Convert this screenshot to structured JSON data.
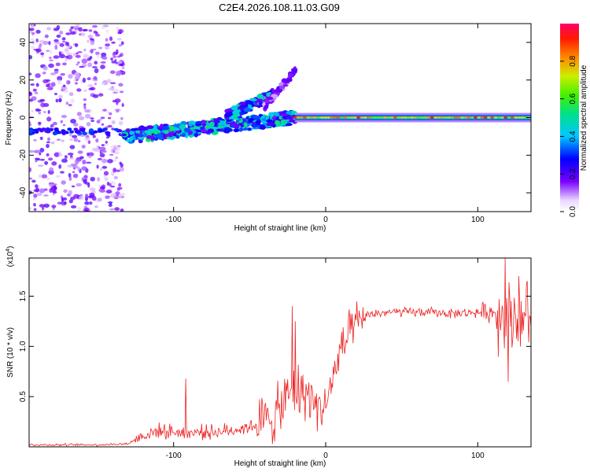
{
  "title": "C2E4.2026.108.11.03.G09",
  "chart_data": [
    {
      "type": "heatmap",
      "title": "C2E4.2026.108.11.03.G09",
      "xlabel": "Height of straight line (km)",
      "ylabel": "Frequency (Hz)",
      "xlim": [
        -195,
        135
      ],
      "ylim": [
        -50,
        50
      ],
      "xticks": [
        -100,
        0,
        100
      ],
      "yticks": [
        -40,
        -20,
        0,
        20,
        40
      ],
      "colorbar": {
        "label": "Normalized spectral amplitude",
        "range": [
          0,
          1
        ],
        "ticks": [
          "0.0",
          "0.2",
          "0.4",
          "0.6",
          "0.8"
        ],
        "tick_values": [
          0.0,
          0.2,
          0.4,
          0.6,
          0.8
        ]
      },
      "features": [
        {
          "name": "noise-band",
          "x_range": [
            -195,
            -133
          ],
          "f_range": [
            -50,
            50
          ]
        },
        {
          "name": "rising-band",
          "x_start": -133,
          "x_end": -20,
          "f_start": -10,
          "f_end": 0
        },
        {
          "name": "upper-streak-1",
          "x_start": -65,
          "x_end": -35,
          "f_start": 1,
          "f_end": 12
        },
        {
          "name": "upper-streak-2",
          "x_start": -40,
          "x_end": -20,
          "f_start": 6,
          "f_end": 25
        },
        {
          "name": "steady-line",
          "x_start": -20,
          "x_end": 135,
          "f": 0
        }
      ]
    },
    {
      "type": "line",
      "xlabel": "Height of straight line (km)",
      "ylabel": "SNR (10 * v/v)",
      "y_multiplier": "(x10^4)",
      "xlim": [
        -195,
        135
      ],
      "ylim": [
        0,
        1.88
      ],
      "xticks": [
        -100,
        0,
        100
      ],
      "yticks": [
        "0.5",
        "1.0",
        "1.5"
      ],
      "ytick_values": [
        0.5,
        1.0,
        1.5
      ],
      "series": [
        {
          "name": "SNR",
          "color": "#ee2222",
          "x": [
            -195,
            -150,
            -130,
            -122,
            -110,
            -100,
            -90,
            -80,
            -70,
            -60,
            -50,
            -40,
            -30,
            -25,
            -20,
            -15,
            -10,
            -5,
            0,
            5,
            10,
            15,
            20,
            25,
            30,
            40,
            50,
            60,
            70,
            80,
            90,
            100,
            105,
            110,
            115,
            120,
            125,
            130,
            135
          ],
          "y": [
            0.02,
            0.02,
            0.03,
            0.1,
            0.16,
            0.15,
            0.14,
            0.15,
            0.15,
            0.17,
            0.2,
            0.25,
            0.35,
            0.5,
            0.55,
            0.55,
            0.5,
            0.4,
            0.4,
            0.7,
            0.95,
            1.1,
            1.2,
            1.28,
            1.32,
            1.34,
            1.34,
            1.34,
            1.34,
            1.33,
            1.33,
            1.34,
            1.34,
            1.34,
            1.33,
            1.32,
            1.3,
            1.3,
            1.3
          ]
        }
      ],
      "spikes": [
        {
          "x": -92,
          "y": 0.68
        },
        {
          "x": -22,
          "y": 1.4
        },
        {
          "x": -20,
          "y": 1.25
        },
        {
          "x": 118,
          "y": 1.88
        },
        {
          "x": 120,
          "y": 0.65
        },
        {
          "x": 127,
          "y": 1.7
        }
      ]
    }
  ]
}
